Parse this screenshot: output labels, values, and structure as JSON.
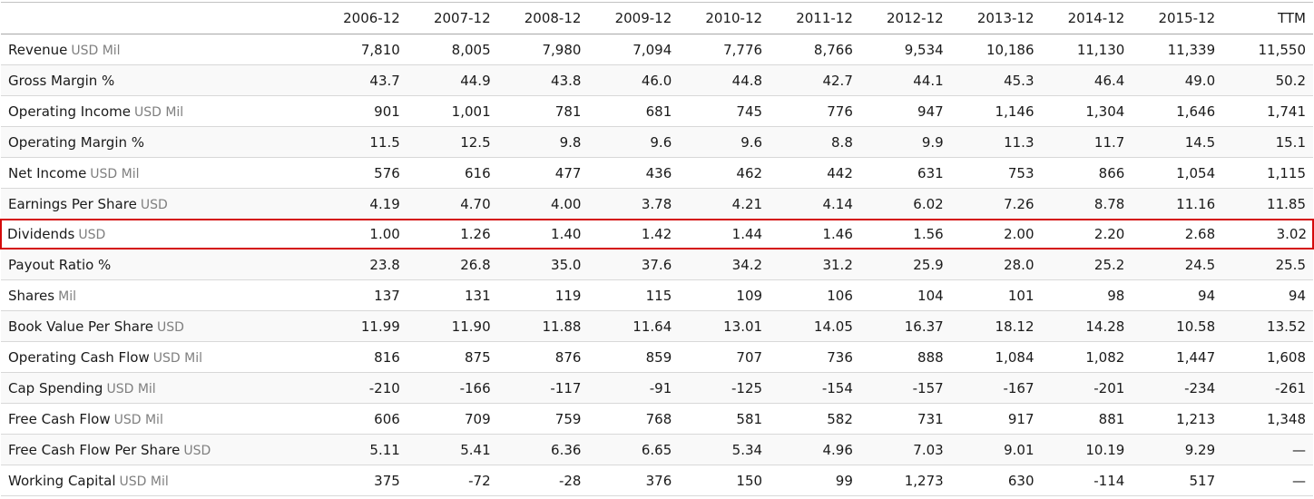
{
  "colors": {
    "highlight_border": "#d40b0b",
    "row_stripe": "#f9f9f9",
    "unit_text": "#7f7f7f",
    "main_text": "#1a1a1a",
    "row_divider": "#d8d8d8",
    "header_divider": "#a8a8a8"
  },
  "chart_data": {
    "type": "table",
    "title": "",
    "columns": [
      "2006-12",
      "2007-12",
      "2008-12",
      "2009-12",
      "2010-12",
      "2011-12",
      "2012-12",
      "2013-12",
      "2014-12",
      "2015-12",
      "TTM"
    ],
    "rows": [
      {
        "label": "Revenue",
        "unit": "USD Mil",
        "highlighted": false,
        "values": [
          "7,810",
          "8,005",
          "7,980",
          "7,094",
          "7,776",
          "8,766",
          "9,534",
          "10,186",
          "11,130",
          "11,339",
          "11,550"
        ]
      },
      {
        "label": "Gross Margin %",
        "unit": "",
        "highlighted": false,
        "values": [
          "43.7",
          "44.9",
          "43.8",
          "46.0",
          "44.8",
          "42.7",
          "44.1",
          "45.3",
          "46.4",
          "49.0",
          "50.2"
        ]
      },
      {
        "label": "Operating Income",
        "unit": "USD Mil",
        "highlighted": false,
        "values": [
          "901",
          "1,001",
          "781",
          "681",
          "745",
          "776",
          "947",
          "1,146",
          "1,304",
          "1,646",
          "1,741"
        ]
      },
      {
        "label": "Operating Margin %",
        "unit": "",
        "highlighted": false,
        "values": [
          "11.5",
          "12.5",
          "9.8",
          "9.6",
          "9.6",
          "8.8",
          "9.9",
          "11.3",
          "11.7",
          "14.5",
          "15.1"
        ]
      },
      {
        "label": "Net Income",
        "unit": "USD Mil",
        "highlighted": false,
        "values": [
          "576",
          "616",
          "477",
          "436",
          "462",
          "442",
          "631",
          "753",
          "866",
          "1,054",
          "1,115"
        ]
      },
      {
        "label": "Earnings Per Share",
        "unit": "USD",
        "highlighted": false,
        "values": [
          "4.19",
          "4.70",
          "4.00",
          "3.78",
          "4.21",
          "4.14",
          "6.02",
          "7.26",
          "8.78",
          "11.16",
          "11.85"
        ]
      },
      {
        "label": "Dividends",
        "unit": "USD",
        "highlighted": true,
        "values": [
          "1.00",
          "1.26",
          "1.40",
          "1.42",
          "1.44",
          "1.46",
          "1.56",
          "2.00",
          "2.20",
          "2.68",
          "3.02"
        ]
      },
      {
        "label": "Payout Ratio %",
        "unit": "",
        "highlighted": false,
        "values": [
          "23.8",
          "26.8",
          "35.0",
          "37.6",
          "34.2",
          "31.2",
          "25.9",
          "28.0",
          "25.2",
          "24.5",
          "25.5"
        ]
      },
      {
        "label": "Shares",
        "unit": "Mil",
        "highlighted": false,
        "values": [
          "137",
          "131",
          "119",
          "115",
          "109",
          "106",
          "104",
          "101",
          "98",
          "94",
          "94"
        ]
      },
      {
        "label": "Book Value Per Share",
        "unit": "USD",
        "highlighted": false,
        "values": [
          "11.99",
          "11.90",
          "11.88",
          "11.64",
          "13.01",
          "14.05",
          "16.37",
          "18.12",
          "14.28",
          "10.58",
          "13.52"
        ]
      },
      {
        "label": "Operating Cash Flow",
        "unit": "USD Mil",
        "highlighted": false,
        "values": [
          "816",
          "875",
          "876",
          "859",
          "707",
          "736",
          "888",
          "1,084",
          "1,082",
          "1,447",
          "1,608"
        ]
      },
      {
        "label": "Cap Spending",
        "unit": "USD Mil",
        "highlighted": false,
        "values": [
          "-210",
          "-166",
          "-117",
          "-91",
          "-125",
          "-154",
          "-157",
          "-167",
          "-201",
          "-234",
          "-261"
        ]
      },
      {
        "label": "Free Cash Flow",
        "unit": "USD Mil",
        "highlighted": false,
        "values": [
          "606",
          "709",
          "759",
          "768",
          "581",
          "582",
          "731",
          "917",
          "881",
          "1,213",
          "1,348"
        ]
      },
      {
        "label": "Free Cash Flow Per Share",
        "unit": "USD",
        "highlighted": false,
        "values": [
          "5.11",
          "5.41",
          "6.36",
          "6.65",
          "5.34",
          "4.96",
          "7.03",
          "9.01",
          "10.19",
          "9.29",
          "—"
        ]
      },
      {
        "label": "Working Capital",
        "unit": "USD Mil",
        "highlighted": false,
        "values": [
          "375",
          "-72",
          "-28",
          "376",
          "150",
          "99",
          "1,273",
          "630",
          "-114",
          "517",
          "—"
        ]
      }
    ]
  }
}
